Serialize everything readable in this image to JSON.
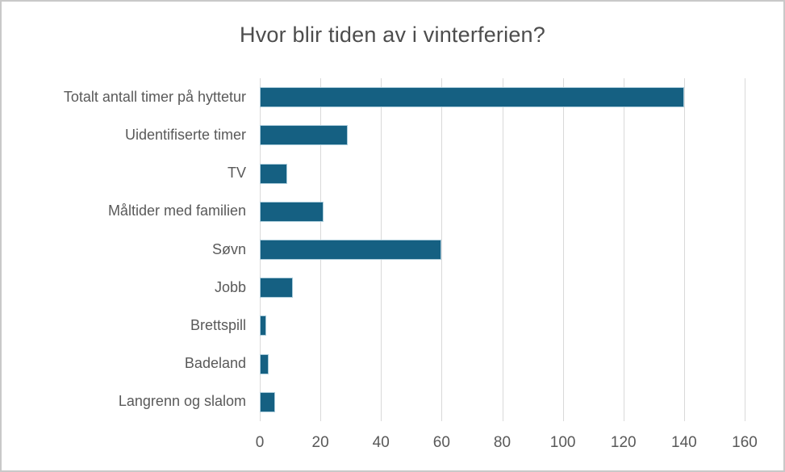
{
  "chart_data": {
    "type": "bar",
    "orientation": "horizontal",
    "title": "Hvor blir tiden av i vinterferien?",
    "categories": [
      "Totalt antall timer på hyttetur",
      "Uidentifiserte timer",
      "TV",
      "Måltider med familien",
      "Søvn",
      "Jobb",
      "Brettspill",
      "Badeland",
      "Langrenn og slalom"
    ],
    "values": [
      140,
      29,
      9,
      21,
      60,
      11,
      2,
      3,
      5
    ],
    "xlabel": "",
    "ylabel": "",
    "xlim": [
      0,
      160
    ],
    "xticks": [
      0,
      20,
      40,
      60,
      80,
      100,
      120,
      140,
      160
    ],
    "grid": "vertical",
    "legend": "none",
    "colors": {
      "bar_fill": "#156082",
      "bar_edge": "#a9cbda",
      "gridline": "#d9d9d9",
      "tick_text": "#595959",
      "category_text": "#595959",
      "title_text": "#4d4d4d",
      "background": "#ffffff",
      "frame_border": "#c9c9c9"
    }
  }
}
